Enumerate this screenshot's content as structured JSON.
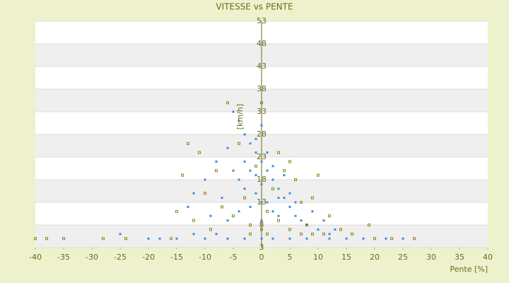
{
  "chart_data": {
    "type": "scatter",
    "title": "VITESSE vs PENTE",
    "x_label": "Pente [%]",
    "y_label": "[km/h]",
    "xlim": [
      -40,
      40
    ],
    "xticks": [
      -40,
      -35,
      -30,
      -25,
      -20,
      -15,
      -10,
      -5,
      0,
      5,
      10,
      15,
      20,
      25,
      30,
      35,
      40
    ],
    "ylim": [
      3,
      53
    ],
    "yticks": [
      3,
      8,
      13,
      18,
      23,
      28,
      33,
      38,
      43,
      48,
      53
    ],
    "grid": true,
    "series": [
      {
        "color": "#3b8fd9",
        "x": [
          -25,
          -20,
          -18,
          -15,
          -12,
          -10,
          -8,
          -6,
          -3,
          0,
          2,
          5,
          8,
          12,
          15,
          18,
          22,
          25,
          -5,
          -4,
          -3,
          -2,
          -1,
          0,
          -6,
          -8,
          -10,
          -12,
          -13,
          -9,
          -7,
          -5,
          -4,
          -3,
          -2,
          -1,
          0,
          1,
          2,
          3,
          4,
          5,
          6,
          7,
          8,
          10,
          12,
          -1,
          0,
          1,
          2,
          -2,
          0,
          3,
          -3,
          4,
          5,
          6,
          9,
          11,
          13,
          -6,
          -4,
          1,
          2,
          -1,
          0,
          3
        ],
        "values": [
          6,
          5,
          5,
          5,
          6,
          5,
          6,
          5,
          5,
          5,
          5,
          5,
          5,
          5,
          5,
          5,
          5,
          5,
          33,
          31,
          28,
          26,
          27,
          30,
          25,
          22,
          18,
          15,
          12,
          10,
          14,
          20,
          18,
          22,
          20,
          24,
          22,
          20,
          18,
          16,
          14,
          12,
          10,
          9,
          8,
          7,
          6,
          15,
          17,
          13,
          11,
          12,
          9,
          10,
          16,
          19,
          15,
          13,
          11,
          9,
          7,
          9,
          11,
          24,
          21,
          19,
          13,
          14
        ]
      },
      {
        "color": "#8a8a1a",
        "x": [
          -40,
          -38,
          -35,
          -28,
          -24,
          -16,
          -14,
          -13,
          -11,
          -10,
          -9,
          -8,
          -7,
          -6,
          -5,
          -4,
          -3,
          -2,
          -1,
          0,
          0,
          1,
          2,
          3,
          4,
          5,
          6,
          7,
          8,
          9,
          10,
          11,
          12,
          14,
          16,
          19,
          20,
          23,
          27,
          -12,
          -15,
          5,
          3,
          7,
          9,
          -2,
          1
        ],
        "values": [
          5,
          5,
          5,
          5,
          5,
          5,
          19,
          26,
          24,
          15,
          7,
          20,
          12,
          35,
          10,
          26,
          14,
          8,
          21,
          35,
          7,
          11,
          16,
          9,
          20,
          7,
          18,
          13,
          8,
          14,
          19,
          6,
          10,
          7,
          6,
          8,
          5,
          5,
          5,
          9,
          11,
          22,
          24,
          6,
          6,
          6,
          6
        ]
      }
    ]
  }
}
